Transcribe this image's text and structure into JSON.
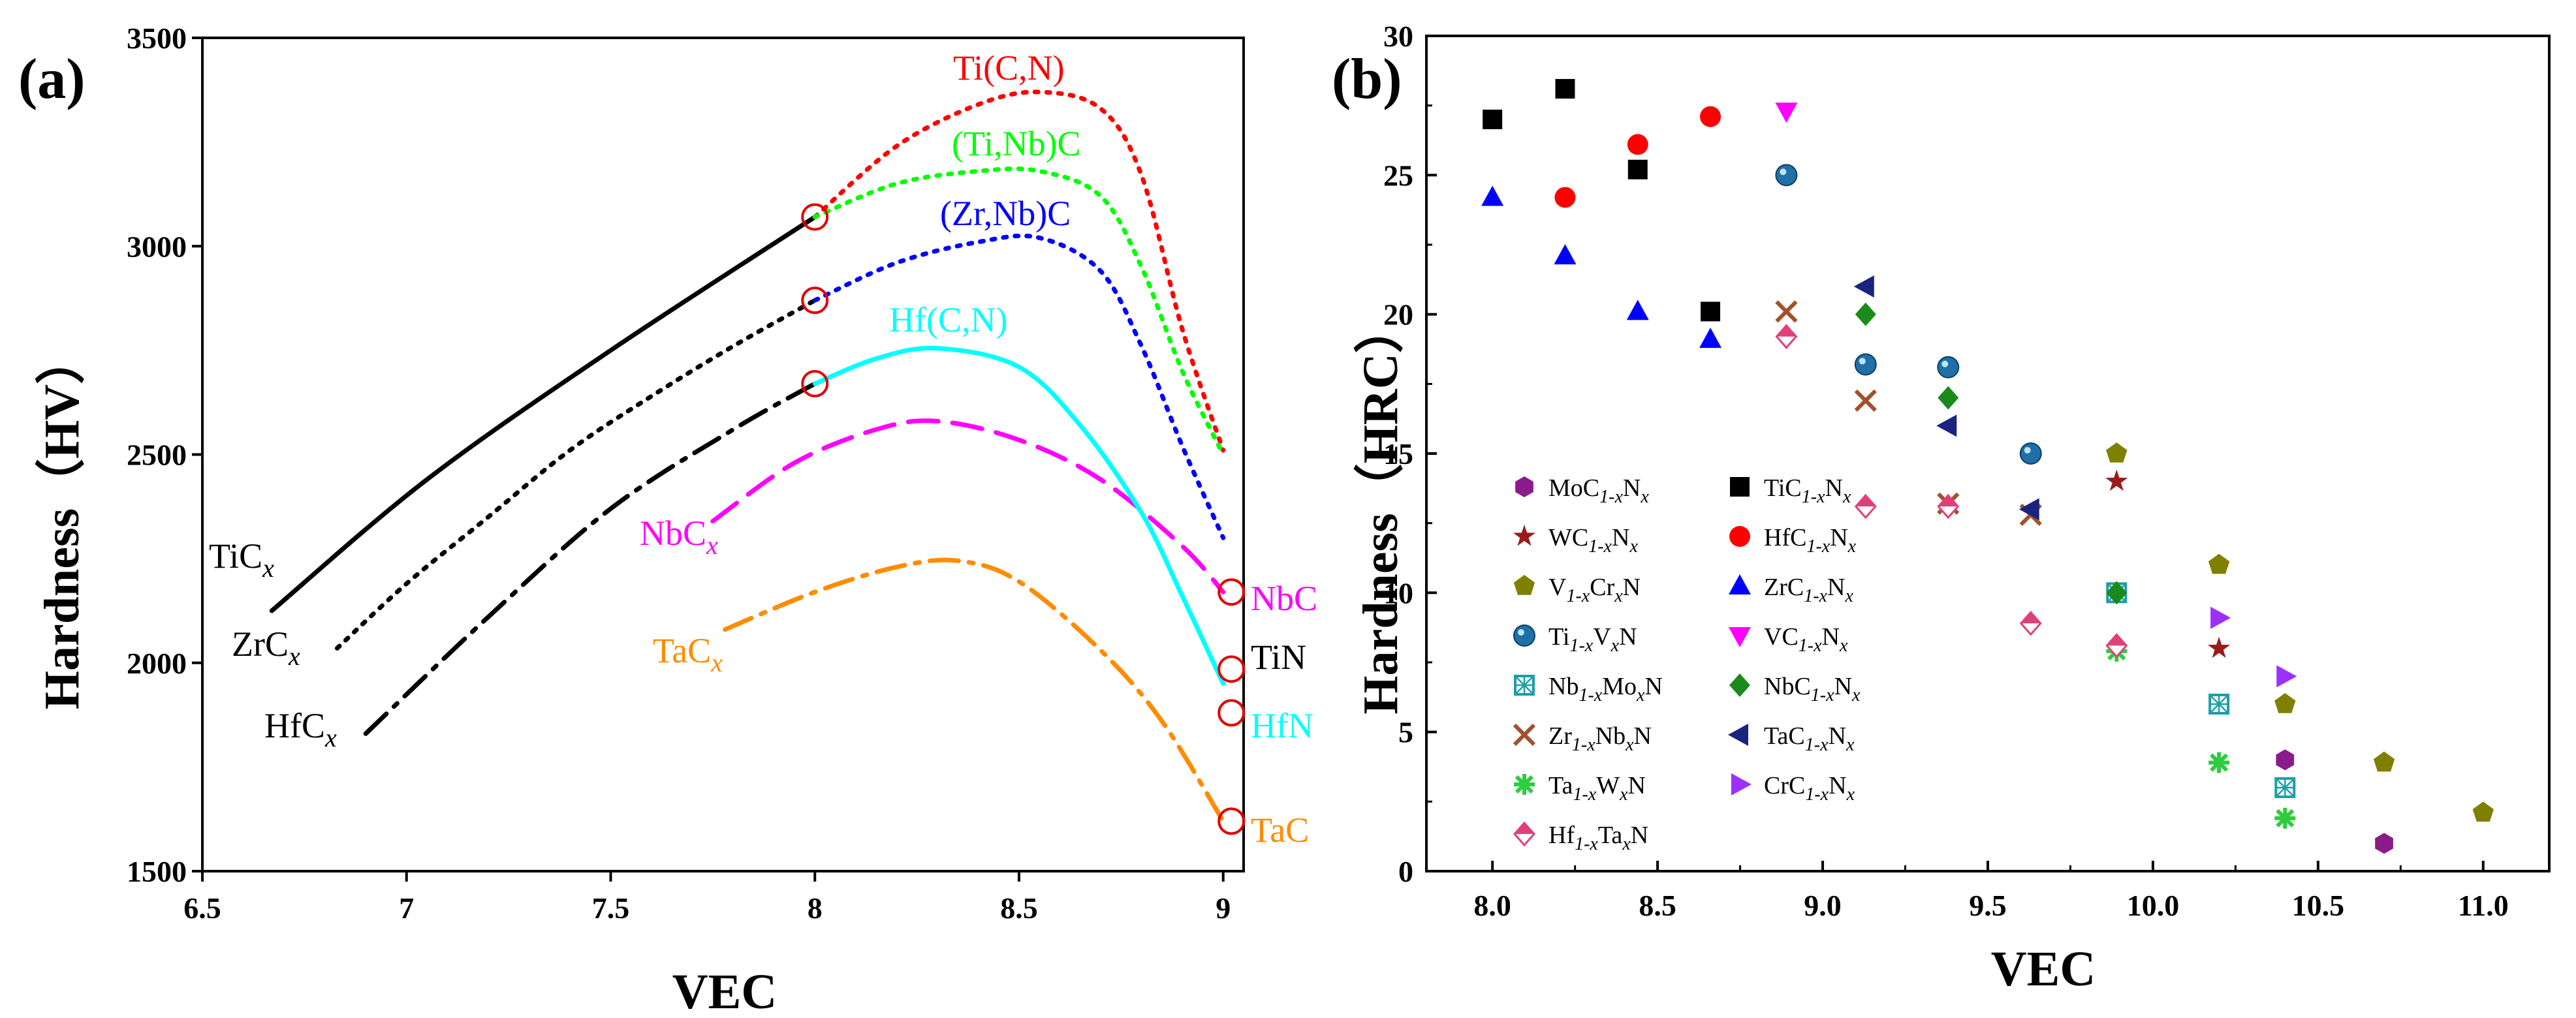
{
  "chart_data": [
    {
      "panel": "(a)",
      "type": "line",
      "xlabel": "VEC",
      "ylabel": "Hardness（HV）",
      "xlim": [
        6.5,
        9.05
      ],
      "ylim": [
        1500,
        3500
      ],
      "xticks": [
        "6.5",
        "7",
        "7.5",
        "8",
        "8.5",
        "9"
      ],
      "yticks": [
        "1500",
        "2000",
        "2500",
        "3000",
        "3500"
      ],
      "series": [
        {
          "name": "TiC_x",
          "label": "TiC",
          "sub": "x",
          "color": "#000000",
          "style": "solid",
          "x": [
            6.67,
            7.05,
            7.5,
            8.0
          ],
          "y": [
            2125,
            2440,
            2750,
            3070
          ]
        },
        {
          "name": "ZrC_x",
          "label": "ZrC",
          "sub": "x",
          "color": "#000000",
          "style": "dotted",
          "x": [
            6.83,
            7.0,
            7.2,
            7.4,
            7.6,
            7.8,
            8.0
          ],
          "y": [
            2035,
            2190,
            2350,
            2510,
            2640,
            2760,
            2870
          ]
        },
        {
          "name": "HfC_x",
          "label": "HfC",
          "sub": "x",
          "color": "#000000",
          "style": "dashdot",
          "x": [
            6.9,
            7.2,
            7.5,
            7.8,
            8.0
          ],
          "y": [
            1830,
            2110,
            2370,
            2560,
            2670
          ]
        },
        {
          "name": "NbC_x",
          "label": "NbC",
          "sub": "x",
          "color": "#ff00ff",
          "style": "dashed",
          "x": [
            7.75,
            7.95,
            8.15,
            8.3,
            8.5,
            8.7,
            8.9,
            9.0
          ],
          "y": [
            2340,
            2480,
            2560,
            2580,
            2535,
            2440,
            2280,
            2170
          ]
        },
        {
          "name": "TaC_x",
          "label": "TaC",
          "sub": "x",
          "color": "#ff8c00",
          "style": "dashdot",
          "x": [
            7.78,
            8.0,
            8.2,
            8.35,
            8.5,
            8.7,
            8.85,
            9.0
          ],
          "y": [
            2080,
            2170,
            2230,
            2245,
            2195,
            2030,
            1860,
            1620
          ]
        },
        {
          "name": "Ti(C,N)",
          "label": "Ti(C,N)",
          "sub": "",
          "color": "#ff0000",
          "style": "dotted",
          "x": [
            8.0,
            8.2,
            8.4,
            8.55,
            8.7,
            8.8,
            8.9,
            9.0
          ],
          "y": [
            3070,
            3240,
            3340,
            3370,
            3330,
            3170,
            2800,
            2510
          ]
        },
        {
          "name": "(Ti,Nb)C",
          "label": "(Ti,Nb)C",
          "sub": "",
          "color": "#00ff00",
          "style": "dotted",
          "x": [
            8.0,
            8.2,
            8.4,
            8.55,
            8.7,
            8.8,
            8.9,
            9.0
          ],
          "y": [
            3070,
            3150,
            3180,
            3180,
            3120,
            2950,
            2700,
            2500
          ]
        },
        {
          "name": "(Zr,Nb)C",
          "label": "(Zr,Nb)C",
          "sub": "",
          "color": "#0000ff",
          "style": "dotted",
          "x": [
            8.0,
            8.2,
            8.4,
            8.55,
            8.7,
            8.8,
            8.9,
            9.0
          ],
          "y": [
            2870,
            2960,
            3010,
            3020,
            2940,
            2760,
            2520,
            2300
          ]
        },
        {
          "name": "Hf(C,N)",
          "label": "Hf(C,N)",
          "sub": "",
          "color": "#00ffff",
          "style": "solid",
          "x": [
            8.0,
            8.15,
            8.3,
            8.5,
            8.65,
            8.8,
            8.9,
            9.0
          ],
          "y": [
            2670,
            2730,
            2755,
            2710,
            2570,
            2360,
            2160,
            1950
          ]
        }
      ],
      "circle_markers": [
        {
          "x": 8.0,
          "y": 3070
        },
        {
          "x": 8.0,
          "y": 2870
        },
        {
          "x": 8.0,
          "y": 2670
        },
        {
          "x": 9.02,
          "y": 2170
        },
        {
          "x": 9.02,
          "y": 1985
        },
        {
          "x": 9.02,
          "y": 1880
        },
        {
          "x": 9.02,
          "y": 1620
        }
      ],
      "end_labels": [
        {
          "text": "NbC",
          "color": "#ff00ff"
        },
        {
          "text": "TiN",
          "color": "#000000"
        },
        {
          "text": "HfN",
          "color": "#00ffff"
        },
        {
          "text": "TaC",
          "color": "#ff8c00"
        }
      ]
    },
    {
      "panel": "(b)",
      "type": "scatter",
      "xlabel": "VEC",
      "ylabel": "Hardness（HRC）",
      "xlim": [
        7.8,
        11.2
      ],
      "ylim": [
        0,
        30
      ],
      "xticks": [
        "8.0",
        "8.5",
        "9.0",
        "9.5",
        "10.0",
        "10.5",
        "11.0"
      ],
      "yticks": [
        "0",
        "5",
        "10",
        "15",
        "20",
        "25",
        "30"
      ],
      "series": [
        {
          "name": "MoC1-xNx",
          "pre": "MoC",
          "sub1": "1-x",
          "mid": "N",
          "sub2": "x",
          "post": "",
          "marker": "hexagon",
          "color": "#8b1a8b",
          "x": [
            10.4,
            10.7
          ],
          "y": [
            4.0,
            1.0
          ]
        },
        {
          "name": "WC1-xNx",
          "pre": "WC",
          "sub1": "1-x",
          "mid": "N",
          "sub2": "x",
          "post": "",
          "marker": "star",
          "color": "#9b1b1b",
          "x": [
            9.89,
            10.2
          ],
          "y": [
            14.0,
            8.0
          ]
        },
        {
          "name": "V1-xCrxN",
          "pre": "V",
          "sub1": "1-x",
          "mid": "Cr",
          "sub2": "x",
          "post": "N",
          "marker": "pentagon",
          "color": "#808000",
          "x": [
            9.89,
            10.2,
            10.4,
            10.7,
            11.0
          ],
          "y": [
            15.0,
            11.0,
            6.0,
            3.9,
            2.1
          ]
        },
        {
          "name": "Ti1-xVxN",
          "pre": "Ti",
          "sub1": "1-x",
          "mid": "V",
          "sub2": "x",
          "post": "N",
          "marker": "sphere",
          "color": "#1f6fa8",
          "x": [
            8.89,
            9.13,
            9.38,
            9.63
          ],
          "y": [
            25.0,
            18.2,
            18.1,
            15.0
          ]
        },
        {
          "name": "Nb1-xMoxN",
          "pre": "Nb",
          "sub1": "1-x",
          "mid": "Mo",
          "sub2": "x",
          "post": "N",
          "marker": "checksquare",
          "color": "#1e9ea8",
          "x": [
            9.89,
            10.2,
            10.4
          ],
          "y": [
            10.0,
            6.0,
            3.0
          ]
        },
        {
          "name": "Zr1-xNbxN",
          "pre": "Zr",
          "sub1": "1-x",
          "mid": "Nb",
          "sub2": "x",
          "post": "N",
          "marker": "x",
          "color": "#a0522d",
          "x": [
            8.89,
            9.13,
            9.38,
            9.63
          ],
          "y": [
            20.1,
            16.9,
            13.2,
            12.8
          ]
        },
        {
          "name": "Ta1-xWxN",
          "pre": "Ta",
          "sub1": "1-x",
          "mid": "W",
          "sub2": "x",
          "post": "N",
          "marker": "asterisk",
          "color": "#2ecc40",
          "x": [
            9.89,
            10.2,
            10.4
          ],
          "y": [
            7.9,
            3.9,
            1.9
          ]
        },
        {
          "name": "Hf1-xTaxN",
          "pre": "Hf",
          "sub1": "1-x",
          "mid": "Ta",
          "sub2": "x",
          "post": "N",
          "marker": "halfdiamond",
          "color": "#e0407a",
          "x": [
            8.89,
            9.13,
            9.38,
            9.63,
            9.89
          ],
          "y": [
            19.2,
            13.1,
            13.1,
            8.9,
            8.1
          ]
        },
        {
          "name": "TiC1-xNx",
          "pre": "TiC",
          "sub1": "1-x",
          "mid": "N",
          "sub2": "x",
          "post": "",
          "marker": "square",
          "color": "#000000",
          "x": [
            8.0,
            8.22,
            8.44,
            8.66
          ],
          "y": [
            27.0,
            28.1,
            25.2,
            20.1
          ]
        },
        {
          "name": "HfC1-xNx",
          "pre": "HfC",
          "sub1": "1-x",
          "mid": "N",
          "sub2": "x",
          "post": "",
          "marker": "circle",
          "color": "#ff0000",
          "x": [
            8.22,
            8.44,
            8.66
          ],
          "y": [
            24.2,
            26.1,
            27.1
          ]
        },
        {
          "name": "ZrC1-xNx",
          "pre": "ZrC",
          "sub1": "1-x",
          "mid": "N",
          "sub2": "x",
          "post": "",
          "marker": "triangle-up",
          "color": "#0000ff",
          "x": [
            8.0,
            8.22,
            8.44,
            8.66
          ],
          "y": [
            24.2,
            22.1,
            20.1,
            19.1
          ]
        },
        {
          "name": "VC1-xNx",
          "pre": "VC",
          "sub1": "1-x",
          "mid": "N",
          "sub2": "x",
          "post": "",
          "marker": "triangle-down",
          "color": "#ff00ff",
          "x": [
            8.89
          ],
          "y": [
            27.3
          ]
        },
        {
          "name": "NbC1-xNx",
          "pre": "NbC",
          "sub1": "1-x",
          "mid": "N",
          "sub2": "x",
          "post": "",
          "marker": "diamond",
          "color": "#1a8a1a",
          "x": [
            9.13,
            9.38,
            9.89
          ],
          "y": [
            20.0,
            17.0,
            10.0
          ]
        },
        {
          "name": "TaC1-xNx",
          "pre": "TaC",
          "sub1": "1-x",
          "mid": "N",
          "sub2": "x",
          "post": "",
          "marker": "triangle-left",
          "color": "#1a237e",
          "x": [
            9.13,
            9.38,
            9.63
          ],
          "y": [
            21.0,
            16.0,
            13.0
          ]
        },
        {
          "name": "CrC1-xNx",
          "pre": "CrC",
          "sub1": "1-x",
          "mid": "N",
          "sub2": "x",
          "post": "",
          "marker": "triangle-right",
          "color": "#9b30ff",
          "x": [
            10.2,
            10.4
          ],
          "y": [
            9.1,
            7.0
          ]
        }
      ]
    }
  ]
}
